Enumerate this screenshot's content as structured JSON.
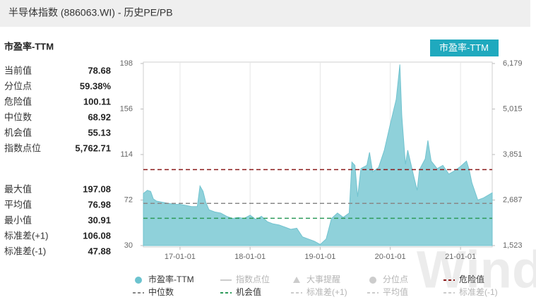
{
  "header": {
    "title": "半导体指数 (886063.WI) - 历史PE/PB"
  },
  "button": {
    "label": "市盈率-TTM"
  },
  "watermark": "Wind",
  "panel": {
    "title": "市盈率-TTM",
    "groups": [
      [
        {
          "label": "当前值",
          "value": 78.68
        },
        {
          "label": "分位点",
          "value": 59.38,
          "value_label": "59.38%"
        },
        {
          "label": "危险值",
          "value": 100.11
        },
        {
          "label": "中位数",
          "value": 68.92
        },
        {
          "label": "机会值",
          "value": 55.13
        },
        {
          "label": "指数点位",
          "value": 5762.71,
          "value_label": "5,762.71"
        }
      ],
      [
        {
          "label": "最大值",
          "value": 197.08
        },
        {
          "label": "平均值",
          "value": 76.98
        },
        {
          "label": "最小值",
          "value": 30.91
        },
        {
          "label": "标准差(+1)",
          "value": 106.08
        },
        {
          "label": "标准差(-1)",
          "value": 47.88
        }
      ]
    ]
  },
  "chart_data": {
    "type": "area",
    "color": "#8fd1da",
    "x": [
      "16-06-24",
      "16-07-15",
      "16-08-01",
      "16-08-15",
      "16-09-01",
      "16-10-01",
      "16-11-01",
      "16-12-01",
      "17-01-01",
      "17-02-01",
      "17-03-01",
      "17-04-01",
      "17-04-15",
      "17-05-01",
      "17-05-15",
      "17-06-01",
      "17-07-01",
      "17-08-01",
      "17-09-01",
      "17-10-01",
      "17-11-01",
      "17-12-01",
      "18-01-01",
      "18-02-01",
      "18-03-01",
      "18-04-01",
      "18-05-01",
      "18-06-01",
      "18-07-01",
      "18-08-01",
      "18-09-01",
      "18-10-01",
      "18-11-01",
      "18-12-01",
      "19-01-01",
      "19-02-01",
      "19-03-01",
      "19-04-01",
      "19-05-01",
      "19-06-01",
      "19-06-15",
      "19-07-01",
      "19-07-15",
      "19-08-01",
      "19-09-01",
      "19-09-15",
      "19-10-01",
      "19-11-01",
      "19-12-01",
      "20-01-01",
      "20-02-01",
      "20-02-20",
      "20-03-01",
      "20-03-20",
      "20-04-01",
      "20-05-01",
      "20-05-20",
      "20-06-01",
      "20-07-01",
      "20-07-15",
      "20-08-01",
      "20-09-01",
      "20-10-01",
      "20-11-01",
      "20-12-01",
      "21-01-01",
      "21-02-01",
      "21-02-15",
      "21-03-01",
      "21-04-01",
      "21-05-01",
      "21-06-15"
    ],
    "values": [
      78,
      81,
      80,
      73,
      71,
      70,
      69,
      68,
      68,
      67,
      66,
      66,
      85,
      80,
      70,
      63,
      61,
      60,
      57,
      55,
      56,
      55,
      58,
      54,
      57,
      52,
      50,
      49,
      47,
      45,
      46,
      38,
      36,
      34,
      31,
      36,
      55,
      60,
      56,
      60,
      107,
      104,
      75,
      101,
      104,
      116,
      98,
      102,
      118,
      142,
      165,
      197.08,
      150,
      105,
      118,
      95,
      81,
      100,
      110,
      127,
      108,
      101,
      104,
      96,
      99,
      103,
      108,
      100,
      88,
      72,
      74,
      78.68
    ],
    "xlim": [
      "16-06-24",
      "21-06-15"
    ],
    "xticks": [
      "17-01-01",
      "18-01-01",
      "19-01-01",
      "20-01-01",
      "21-01-01"
    ],
    "ylim": [
      30,
      198
    ],
    "yticks": [
      30,
      72,
      114,
      156,
      198
    ],
    "y2lim": [
      1523,
      6179
    ],
    "y2ticks": [
      {
        "value": 1523,
        "label": "1,523"
      },
      {
        "value": 2687,
        "label": "2,687"
      },
      {
        "value": 3851,
        "label": "3,851"
      },
      {
        "value": 5015,
        "label": "5,015"
      },
      {
        "value": 6179,
        "label": "6,179"
      }
    ],
    "grid": true,
    "legend": [
      {
        "name": "市盈率-TTM",
        "marker": "circle",
        "color": "#6cc3cf",
        "active": true
      },
      {
        "name": "指数点位",
        "marker": "line",
        "color": "#cccccc",
        "active": false
      },
      {
        "name": "大事提醒",
        "marker": "triangle",
        "color": "#cccccc",
        "active": false
      },
      {
        "name": "分位点",
        "marker": "circle",
        "color": "#cccccc",
        "active": false
      },
      {
        "name": "危险值",
        "marker": "dash",
        "color": "#8b1a1a",
        "active": true,
        "value": 100.11
      },
      {
        "name": "中位数",
        "marker": "dash",
        "color": "#888888",
        "active": true,
        "value": 68.92
      },
      {
        "name": "机会值",
        "marker": "dash",
        "color": "#2e9b5a",
        "active": true,
        "value": 55.13
      },
      {
        "name": "标准差(+1)",
        "marker": "dash",
        "color": "#cccccc",
        "active": false
      },
      {
        "name": "平均值",
        "marker": "dash",
        "color": "#cccccc",
        "active": false
      },
      {
        "name": "标准差(-1)",
        "marker": "dash",
        "color": "#cccccc",
        "active": false
      }
    ]
  }
}
